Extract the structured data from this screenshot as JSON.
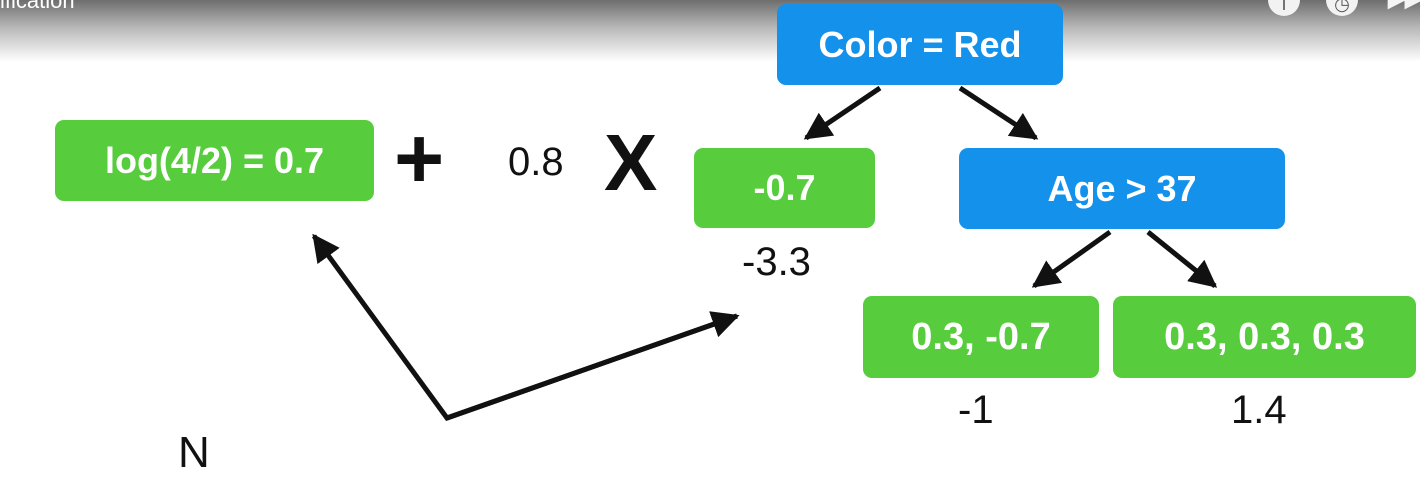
{
  "video": {
    "title": "ification",
    "controls": [
      "info-icon",
      "clock-icon",
      "next-icon"
    ]
  },
  "prediction": {
    "initial": "log(4/2) = 0.7",
    "plus": "+",
    "learning_rate": "0.8",
    "times": "X"
  },
  "tree": {
    "root": "Color = Red",
    "left_leaf": "-0.7",
    "left_leaf_output": "-3.3",
    "right_node": "Age > 37",
    "leaf_a": "0.3, -0.7",
    "leaf_a_output": "-1",
    "leaf_b": "0.3, 0.3, 0.3",
    "leaf_b_output": "1.4"
  },
  "colors": {
    "leaf_green": "#57cc3d",
    "node_blue": "#1492eb",
    "arrow": "#111111"
  },
  "caption_partial": "N"
}
